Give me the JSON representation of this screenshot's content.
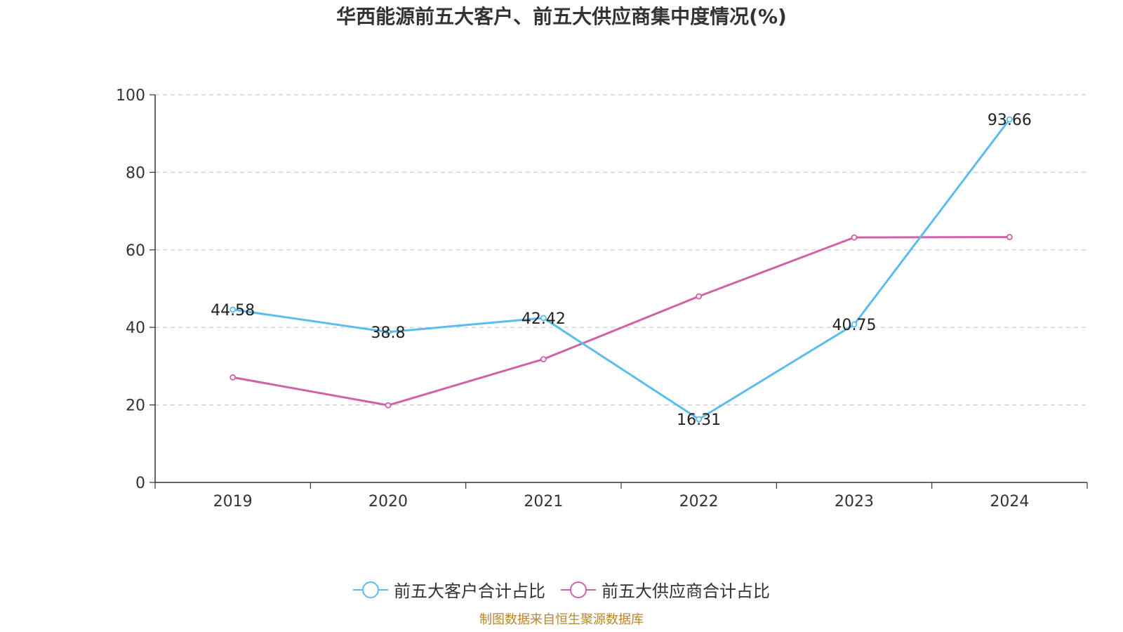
{
  "title": "华西能源前五大客户、前五大供应商集中度情况(%)",
  "source": "制图数据来自恒生聚源数据库",
  "chart_data": {
    "type": "line",
    "title": "华西能源前五大客户、前五大供应商集中度情况(%)",
    "categories": [
      "2019",
      "2020",
      "2021",
      "2022",
      "2023",
      "2024"
    ],
    "ylim": [
      0,
      100
    ],
    "yticks": [
      0,
      20,
      40,
      60,
      80,
      100
    ],
    "grid": true,
    "legend_position": "bottom",
    "series": [
      {
        "name": "前五大客户合计占比",
        "color": "#5bbcee",
        "values": [
          44.58,
          38.8,
          42.42,
          16.31,
          40.75,
          93.66
        ],
        "labels": [
          "44.58",
          "38.8",
          "42.42",
          "16.31",
          "40.75",
          "93.66"
        ]
      },
      {
        "name": "前五大供应商合计占比",
        "color": "#d062a8",
        "values": [
          27.1,
          19.9,
          31.8,
          48.0,
          63.2,
          63.3
        ]
      }
    ]
  }
}
